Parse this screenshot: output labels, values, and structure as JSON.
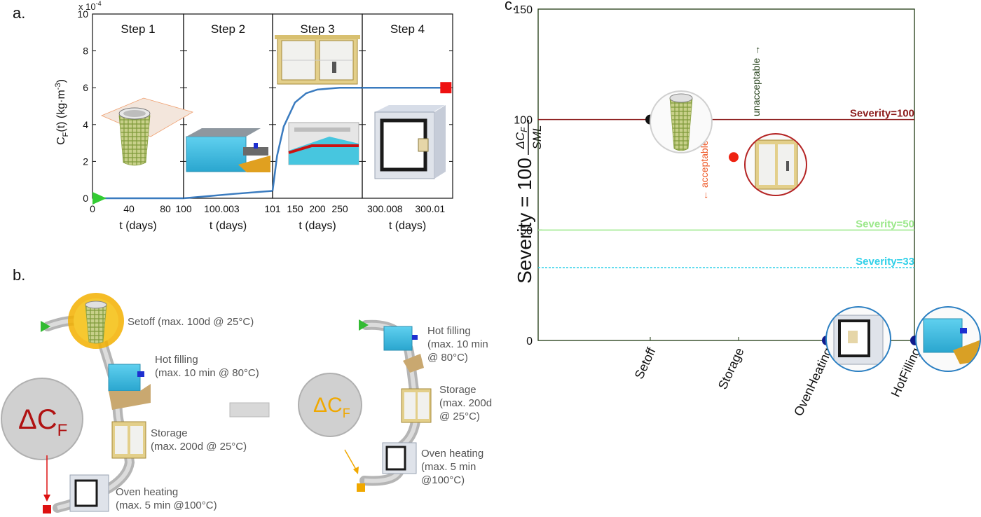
{
  "panels": {
    "a": "a.",
    "b": "b.",
    "c": "c."
  },
  "chart_data": [
    {
      "type": "line",
      "panel": "a",
      "ylabel": "C",
      "ylabel_sub": "F",
      "ylabel_rest": "(t) (kg·m",
      "ylabel_sup": "-3",
      "ylabel_end": ")",
      "y_scale_label": "x 10",
      "y_scale_exp": "-4",
      "ylim": [
        0,
        10
      ],
      "yticks": [
        "0",
        "2",
        "4",
        "6",
        "8",
        "10"
      ],
      "subplots": [
        {
          "title": "Step 1",
          "xlabel": "t (days)",
          "xlim": [
            0,
            100
          ],
          "xticks": [
            "0",
            "40",
            "80"
          ],
          "x": [
            0,
            20,
            40,
            60,
            80,
            100
          ],
          "y": [
            0,
            0,
            0,
            0,
            0,
            0
          ]
        },
        {
          "title": "Step 2",
          "xlabel": "t (days)",
          "xlim": [
            100,
            100.007
          ],
          "xticks": [
            "100",
            "100.003"
          ],
          "x": [
            100,
            100.002,
            100.004,
            100.007
          ],
          "y": [
            0,
            0.12,
            0.24,
            0.4
          ]
        },
        {
          "title": "Step 3",
          "xlabel": "t (days)",
          "xlim": [
            100.007,
            300.007
          ],
          "xticks": [
            "101",
            "150",
            "200",
            "250"
          ],
          "x": [
            100.007,
            110,
            125,
            150,
            175,
            200,
            225,
            250,
            275,
            300.007
          ],
          "y": [
            0.4,
            2.3,
            3.9,
            5.2,
            5.7,
            5.9,
            5.95,
            6.0,
            6.0,
            6.0
          ]
        },
        {
          "title": "Step 4",
          "xlabel": "t (days)",
          "xlim": [
            300.007,
            300.011
          ],
          "xticks": [
            "300.008",
            "300.01"
          ],
          "x": [
            300.007,
            300.009,
            300.0107
          ],
          "y": [
            6.0,
            6.0,
            6.0
          ]
        }
      ],
      "start_marker": {
        "x": 0,
        "y": 0,
        "color": "#33cc33"
      },
      "end_marker": {
        "x": 300.0107,
        "y": 6.0,
        "color": "#ee1111"
      },
      "line_color": "#3a7bbf"
    },
    {
      "type": "scatter",
      "panel": "c",
      "ylabel": "Severity = 100",
      "ylabel_frac_num": "ΔC",
      "ylabel_frac_num_sub": "F",
      "ylabel_frac_den": "SML",
      "ylim": [
        0,
        150
      ],
      "yticks": [
        "0",
        "50",
        "100",
        "150"
      ],
      "categories": [
        "Setoff",
        "Storage",
        "OvenHeating",
        "HotFilling"
      ],
      "points": [
        {
          "category": "Setoff",
          "y": 100,
          "color": "#111111"
        },
        {
          "category": "Storage",
          "y": 83,
          "color": "#ee2211"
        },
        {
          "category": "OvenHeating",
          "y": 0,
          "color": "#101a8c"
        },
        {
          "category": "HotFilling",
          "y": 0,
          "color": "#101a8c"
        }
      ],
      "thresholds": [
        {
          "label": "Severity=100",
          "y": 100,
          "color": "#8b1a1a"
        },
        {
          "label": "Severity=50",
          "y": 50,
          "color": "#9be88a"
        },
        {
          "label": "Severity=33",
          "y": 33,
          "color": "#2fd0e8"
        }
      ],
      "annotations": {
        "unacceptable": "unacceptable →",
        "acceptable": "← acceptable"
      }
    }
  ],
  "diagram": {
    "left": {
      "center_label": "ΔC",
      "center_sub": "F",
      "color": "#b01212",
      "steps": [
        {
          "line1": "Setoff (max. 100d @ 25°C)",
          "line2": ""
        },
        {
          "line1": "Hot filling",
          "line2": "(max. 10 min @ 80°C)"
        },
        {
          "line1": "Storage",
          "line2": "(max. 200d @ 25°C)"
        },
        {
          "line1": "Oven heating",
          "line2": "(max. 5 min @100°C)"
        }
      ]
    },
    "right": {
      "center_label": "ΔC",
      "center_sub": "F",
      "color": "#f0a800",
      "steps": [
        {
          "line1": "Hot filling",
          "line2": "(max. 10 min",
          "line3": "@ 80°C)"
        },
        {
          "line1": "Storage",
          "line2": "(max. 200d",
          "line3": "@ 25°C)"
        },
        {
          "line1": "Oven heating",
          "line2": "(max. 5 min",
          "line3": "@100°C)"
        }
      ]
    },
    "colors": {
      "start": "#33bb33",
      "end_left": "#dd1111",
      "end_right": "#f0a800",
      "tube": "#b9b9b9"
    }
  },
  "icons": [
    "cup-icon",
    "filling-machine-icon",
    "cabinet-icon",
    "oven-icon",
    "conveyor-icon"
  ]
}
